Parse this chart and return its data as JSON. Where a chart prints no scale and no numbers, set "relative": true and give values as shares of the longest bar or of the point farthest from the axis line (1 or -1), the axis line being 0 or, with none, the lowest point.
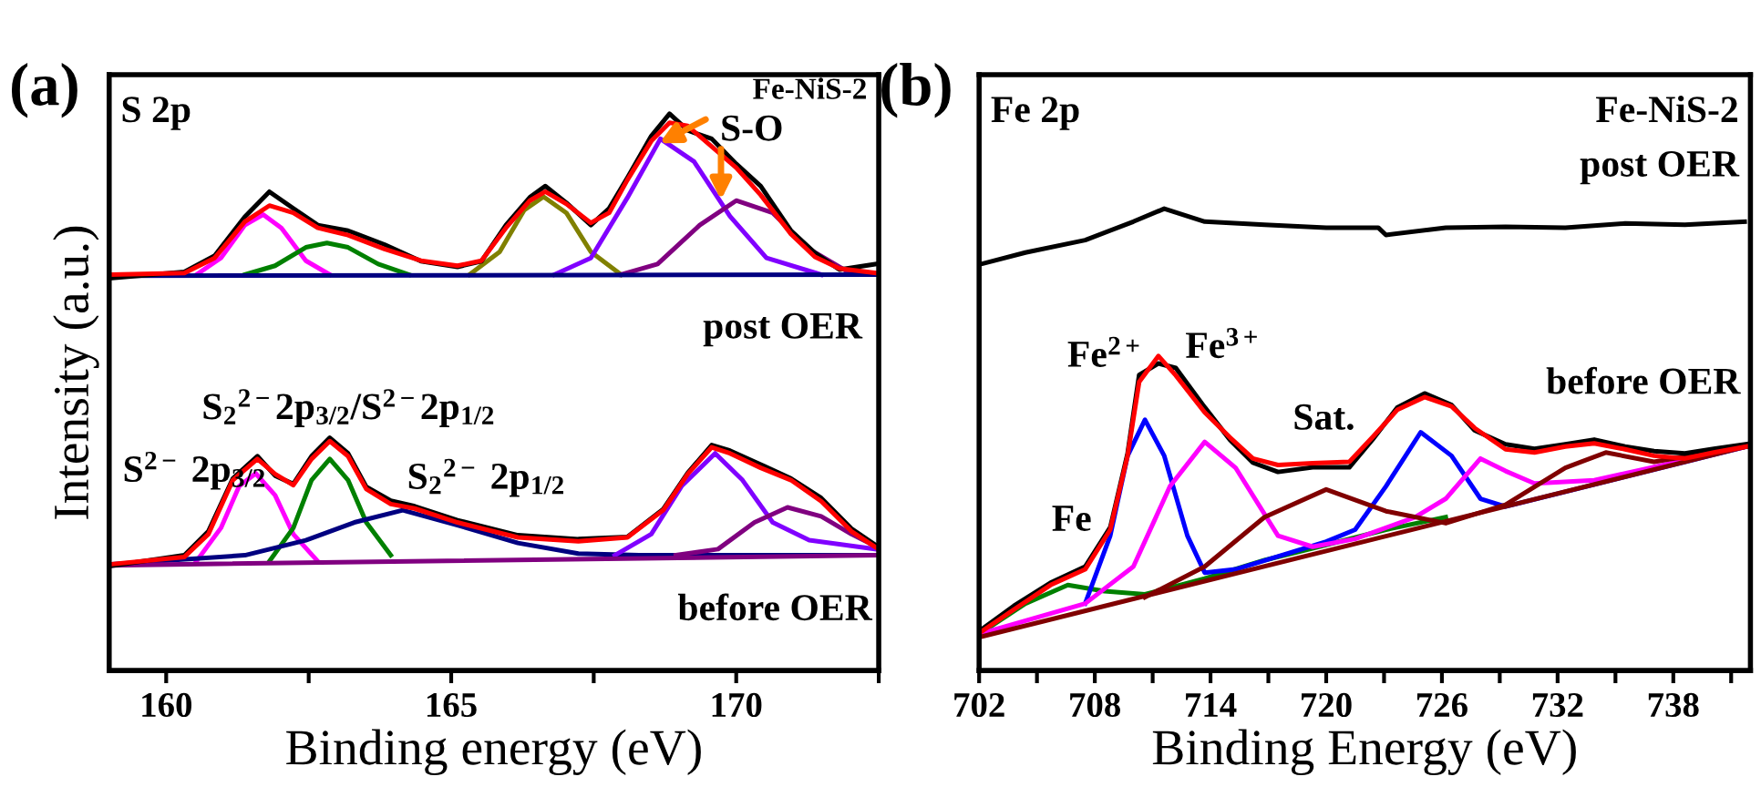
{
  "chart_data": [
    {
      "type": "line",
      "title": "(a)",
      "xlabel": "Binding energy (eV)",
      "ylabel": "Intensity (a.u.)",
      "relative": true,
      "line_style": "solid",
      "xlim": [
        159,
        172.5
      ],
      "xticks": [
        160,
        {
          "value": 162.5,
          "label": null
        },
        165,
        {
          "value": 167.5,
          "label": null
        },
        170,
        {
          "value": 172.5,
          "label": null
        }
      ],
      "annotations": [
        "S 2p",
        "Fe-NiS-2",
        "S-O",
        "post OER",
        "before OER",
        "S$^{2−}$ 2p$_{3/2}$",
        "S$_{2}$$^{2−}$2p$_{3/2}$/S$^{2−}$2p$_{1/2}$",
        "S$_{2}$$^{2−}$ 2p$_{1/2}$"
      ],
      "series": [
        {
          "color": "#ff00ff",
          "x": [
            160.53,
            160.96,
            161.38,
            161.7,
            162.02,
            162.45,
            162.87
          ],
          "values": [
            0.711,
            0.741,
            0.8,
            0.819,
            0.795,
            0.736,
            0.711
          ]
        },
        {
          "color": "#008000",
          "x": [
            161.38,
            161.91,
            162.45,
            162.82,
            163.19,
            163.72,
            164.26
          ],
          "values": [
            0.711,
            0.727,
            0.76,
            0.768,
            0.76,
            0.73,
            0.711
          ]
        },
        {
          "color": "#808000",
          "x": [
            165.32,
            165.85,
            166.28,
            166.62,
            167.02,
            167.45,
            167.98
          ],
          "values": [
            0.711,
            0.752,
            0.827,
            0.851,
            0.822,
            0.752,
            0.711
          ]
        },
        {
          "color": "#8000ff",
          "x": [
            166.81,
            167.45,
            168.09,
            168.67,
            169.26,
            169.89,
            170.53,
            171.49
          ],
          "values": [
            0.711,
            0.741,
            0.849,
            0.955,
            0.914,
            0.816,
            0.741,
            0.711
          ]
        },
        {
          "color": "#800080",
          "x": [
            167.98,
            168.62,
            169.36,
            170.0,
            170.64,
            171.28,
            171.91,
            172.45
          ],
          "values": [
            0.711,
            0.73,
            0.8,
            0.844,
            0.822,
            0.757,
            0.719,
            0.711
          ]
        },
        {
          "color": "#000080",
          "x": [
            159.04,
            172.45
          ],
          "values": [
            0.709,
            0.711
          ]
        },
        {
          "color": "#000000",
          "x": [
            159.04,
            160.32,
            160.85,
            161.38,
            161.81,
            162.23,
            162.66,
            163.19,
            163.83,
            164.47,
            165.11,
            165.53,
            165.96,
            166.38,
            166.65,
            167.02,
            167.45,
            167.77,
            168.09,
            168.51,
            168.83,
            169.15,
            169.57,
            170.0,
            170.43,
            170.96,
            171.38,
            171.81,
            172.45
          ],
          "values": [
            0.705,
            0.716,
            0.745,
            0.815,
            0.86,
            0.83,
            0.8,
            0.79,
            0.765,
            0.735,
            0.725,
            0.735,
            0.8,
            0.85,
            0.87,
            0.84,
            0.8,
            0.83,
            0.885,
            0.96,
            1.0,
            0.97,
            0.955,
            0.91,
            0.87,
            0.79,
            0.75,
            0.72,
            0.73
          ]
        },
        {
          "color": "#ff0000",
          "x": [
            159.04,
            160.32,
            160.85,
            161.38,
            161.81,
            162.23,
            162.66,
            163.19,
            163.83,
            164.47,
            165.11,
            165.53,
            165.96,
            166.38,
            166.65,
            167.02,
            167.45,
            167.77,
            168.09,
            168.51,
            168.83,
            169.15,
            169.57,
            170.0,
            170.43,
            170.96,
            171.38,
            171.81,
            172.45
          ],
          "values": [
            0.711,
            0.714,
            0.741,
            0.806,
            0.835,
            0.822,
            0.795,
            0.782,
            0.757,
            0.736,
            0.727,
            0.736,
            0.795,
            0.844,
            0.86,
            0.838,
            0.804,
            0.822,
            0.881,
            0.951,
            0.984,
            0.978,
            0.941,
            0.903,
            0.854,
            0.784,
            0.743,
            0.722,
            0.714
          ]
        },
        {
          "color": "#ff00ff",
          "x": [
            160.53,
            160.96,
            161.28,
            161.57,
            161.91,
            162.23,
            162.66
          ],
          "values": [
            0.196,
            0.256,
            0.331,
            0.354,
            0.315,
            0.245,
            0.196
          ]
        },
        {
          "color": "#008000",
          "x": [
            161.81,
            162.23,
            162.55,
            162.87,
            163.19,
            163.51,
            163.94
          ],
          "values": [
            0.196,
            0.256,
            0.342,
            0.38,
            0.342,
            0.266,
            0.207
          ]
        },
        {
          "color": "#000080",
          "x": [
            159.04,
            161.38,
            162.45,
            163.3,
            164.15,
            165.11,
            166.17,
            167.23,
            168.3,
            172.45
          ],
          "values": [
            0.191,
            0.207,
            0.234,
            0.266,
            0.288,
            0.261,
            0.229,
            0.21,
            0.207,
            0.207
          ]
        },
        {
          "color": "#8000ff",
          "x": [
            167.87,
            168.51,
            169.04,
            169.63,
            170.11,
            170.64,
            171.28,
            172.45
          ],
          "values": [
            0.207,
            0.245,
            0.331,
            0.39,
            0.342,
            0.266,
            0.234,
            0.218
          ]
        },
        {
          "color": "#800080",
          "x": [
            168.94,
            169.68,
            170.32,
            170.9,
            171.49,
            172.02,
            172.45
          ],
          "values": [
            0.207,
            0.218,
            0.266,
            0.293,
            0.277,
            0.245,
            0.223
          ]
        },
        {
          "color": "#800080",
          "x": [
            159.04,
            172.45
          ],
          "values": [
            0.189,
            0.207
          ]
        },
        {
          "color": "#000000",
          "x": [
            159.04,
            160.32,
            160.74,
            161.17,
            161.6,
            161.91,
            162.23,
            162.55,
            162.87,
            163.19,
            163.51,
            163.94,
            164.36,
            165.11,
            166.17,
            167.23,
            168.09,
            168.72,
            169.15,
            169.57,
            169.89,
            170.43,
            170.96,
            171.49,
            172.02,
            172.45
          ],
          "values": [
            0.188,
            0.207,
            0.25,
            0.345,
            0.385,
            0.35,
            0.335,
            0.385,
            0.418,
            0.39,
            0.33,
            0.305,
            0.295,
            0.27,
            0.243,
            0.236,
            0.24,
            0.29,
            0.355,
            0.405,
            0.395,
            0.37,
            0.345,
            0.31,
            0.255,
            0.225
          ]
        },
        {
          "color": "#ff0000",
          "x": [
            159.04,
            160.32,
            160.74,
            161.17,
            161.6,
            161.91,
            162.23,
            162.55,
            162.87,
            163.19,
            163.51,
            163.94,
            164.36,
            165.11,
            166.17,
            167.23,
            168.09,
            168.72,
            169.15,
            169.57,
            169.89,
            170.43,
            170.96,
            171.49,
            172.02,
            172.45
          ],
          "values": [
            0.191,
            0.204,
            0.245,
            0.342,
            0.38,
            0.353,
            0.333,
            0.38,
            0.412,
            0.385,
            0.326,
            0.299,
            0.291,
            0.266,
            0.239,
            0.232,
            0.239,
            0.288,
            0.353,
            0.401,
            0.39,
            0.364,
            0.342,
            0.304,
            0.25,
            0.221
          ]
        }
      ]
    },
    {
      "type": "line",
      "title": "(b)",
      "xlabel": "Binding Energy (eV)",
      "relative": true,
      "line_style": "solid",
      "xlim": [
        702,
        742
      ],
      "xticks": [
        702,
        {
          "value": 705,
          "label": null
        },
        708,
        {
          "value": 711,
          "label": null
        },
        714,
        {
          "value": 717,
          "label": null
        },
        720,
        {
          "value": 723,
          "label": null
        },
        726,
        {
          "value": 729,
          "label": null
        },
        732,
        {
          "value": 735,
          "label": null
        },
        738,
        {
          "value": 741,
          "label": null
        }
      ],
      "annotations": [
        "Fe 2p",
        "Fe-NiS-2",
        "post OER",
        "before OER",
        "Fe$^{2+}$",
        "Fe$^{3+}$",
        "Sat.",
        "Fe"
      ],
      "series": [
        {
          "color": "#000000",
          "x": [
            702.0,
            704.4,
            707.5,
            710.0,
            711.6,
            713.7,
            716.8,
            720.0,
            722.7,
            723.1,
            726.2,
            729.3,
            732.4,
            735.5,
            738.6,
            741.7
          ],
          "values": [
            0.879,
            0.905,
            0.932,
            0.972,
            1.0,
            0.972,
            0.965,
            0.959,
            0.959,
            0.943,
            0.959,
            0.961,
            0.959,
            0.968,
            0.965,
            0.972
          ]
        },
        {
          "color": "#008000",
          "x": [
            702.0,
            704.4,
            706.6,
            708.5,
            710.6,
            713.7,
            716.8,
            720.0,
            723.1,
            726.2
          ],
          "values": [
            0.079,
            0.145,
            0.185,
            0.172,
            0.165,
            0.199,
            0.239,
            0.272,
            0.305,
            0.332
          ]
        },
        {
          "color": "#0000ff",
          "x": [
            707.5,
            708.8,
            709.7,
            710.6,
            711.6,
            712.8,
            713.7,
            715.3,
            720.0,
            721.5,
            723.1,
            724.9,
            726.5,
            728.0,
            729.3,
            732.4,
            741.8
          ],
          "values": [
            0.145,
            0.292,
            0.465,
            0.543,
            0.465,
            0.292,
            0.212,
            0.219,
            0.279,
            0.305,
            0.399,
            0.516,
            0.465,
            0.372,
            0.355,
            0.387,
            0.485
          ]
        },
        {
          "color": "#ff00ff",
          "x": [
            702.0,
            707.5,
            710.0,
            711.9,
            713.7,
            715.3,
            717.5,
            719.3,
            721.5,
            724.6,
            726.2,
            728.0,
            729.3,
            730.8,
            733.9,
            741.8
          ],
          "values": [
            0.079,
            0.145,
            0.225,
            0.399,
            0.495,
            0.439,
            0.292,
            0.268,
            0.285,
            0.332,
            0.372,
            0.459,
            0.432,
            0.405,
            0.412,
            0.485
          ]
        },
        {
          "color": "#800000",
          "x": [
            710.6,
            713.7,
            716.8,
            720.0,
            723.1,
            726.2,
            729.3,
            732.4,
            734.5,
            737.0,
            741.8
          ],
          "values": [
            0.159,
            0.225,
            0.332,
            0.392,
            0.345,
            0.319,
            0.359,
            0.439,
            0.472,
            0.452,
            0.485
          ]
        },
        {
          "color": "#800000",
          "x": [
            702.0,
            741.8
          ],
          "values": [
            0.072,
            0.485
          ]
        },
        {
          "color": "#000000",
          "x": [
            702.0,
            703.8,
            705.7,
            707.5,
            708.8,
            709.7,
            710.3,
            711.3,
            712.2,
            713.7,
            715.0,
            716.2,
            717.5,
            719.3,
            721.2,
            722.4,
            723.7,
            725.1,
            726.5,
            727.7,
            729.3,
            730.8,
            732.4,
            733.9,
            735.5,
            737.0,
            738.6,
            740.1,
            741.8
          ],
          "values": [
            0.085,
            0.14,
            0.19,
            0.225,
            0.31,
            0.47,
            0.64,
            0.665,
            0.655,
            0.57,
            0.5,
            0.45,
            0.43,
            0.44,
            0.44,
            0.5,
            0.57,
            0.6,
            0.575,
            0.52,
            0.49,
            0.48,
            0.49,
            0.5,
            0.485,
            0.475,
            0.47,
            0.48,
            0.49
          ]
        },
        {
          "color": "#ff0000",
          "x": [
            702.0,
            703.8,
            705.7,
            707.5,
            708.8,
            709.7,
            710.3,
            711.3,
            712.2,
            713.7,
            715.0,
            716.2,
            717.5,
            719.3,
            721.2,
            722.4,
            723.7,
            725.1,
            726.5,
            727.7,
            729.3,
            730.8,
            732.4,
            733.9,
            735.5,
            737.0,
            738.6,
            740.1,
            741.8
          ],
          "values": [
            0.081,
            0.132,
            0.185,
            0.219,
            0.305,
            0.465,
            0.625,
            0.681,
            0.639,
            0.559,
            0.505,
            0.459,
            0.445,
            0.449,
            0.452,
            0.505,
            0.565,
            0.592,
            0.572,
            0.525,
            0.479,
            0.472,
            0.485,
            0.492,
            0.479,
            0.465,
            0.459,
            0.472,
            0.485
          ]
        }
      ]
    }
  ]
}
